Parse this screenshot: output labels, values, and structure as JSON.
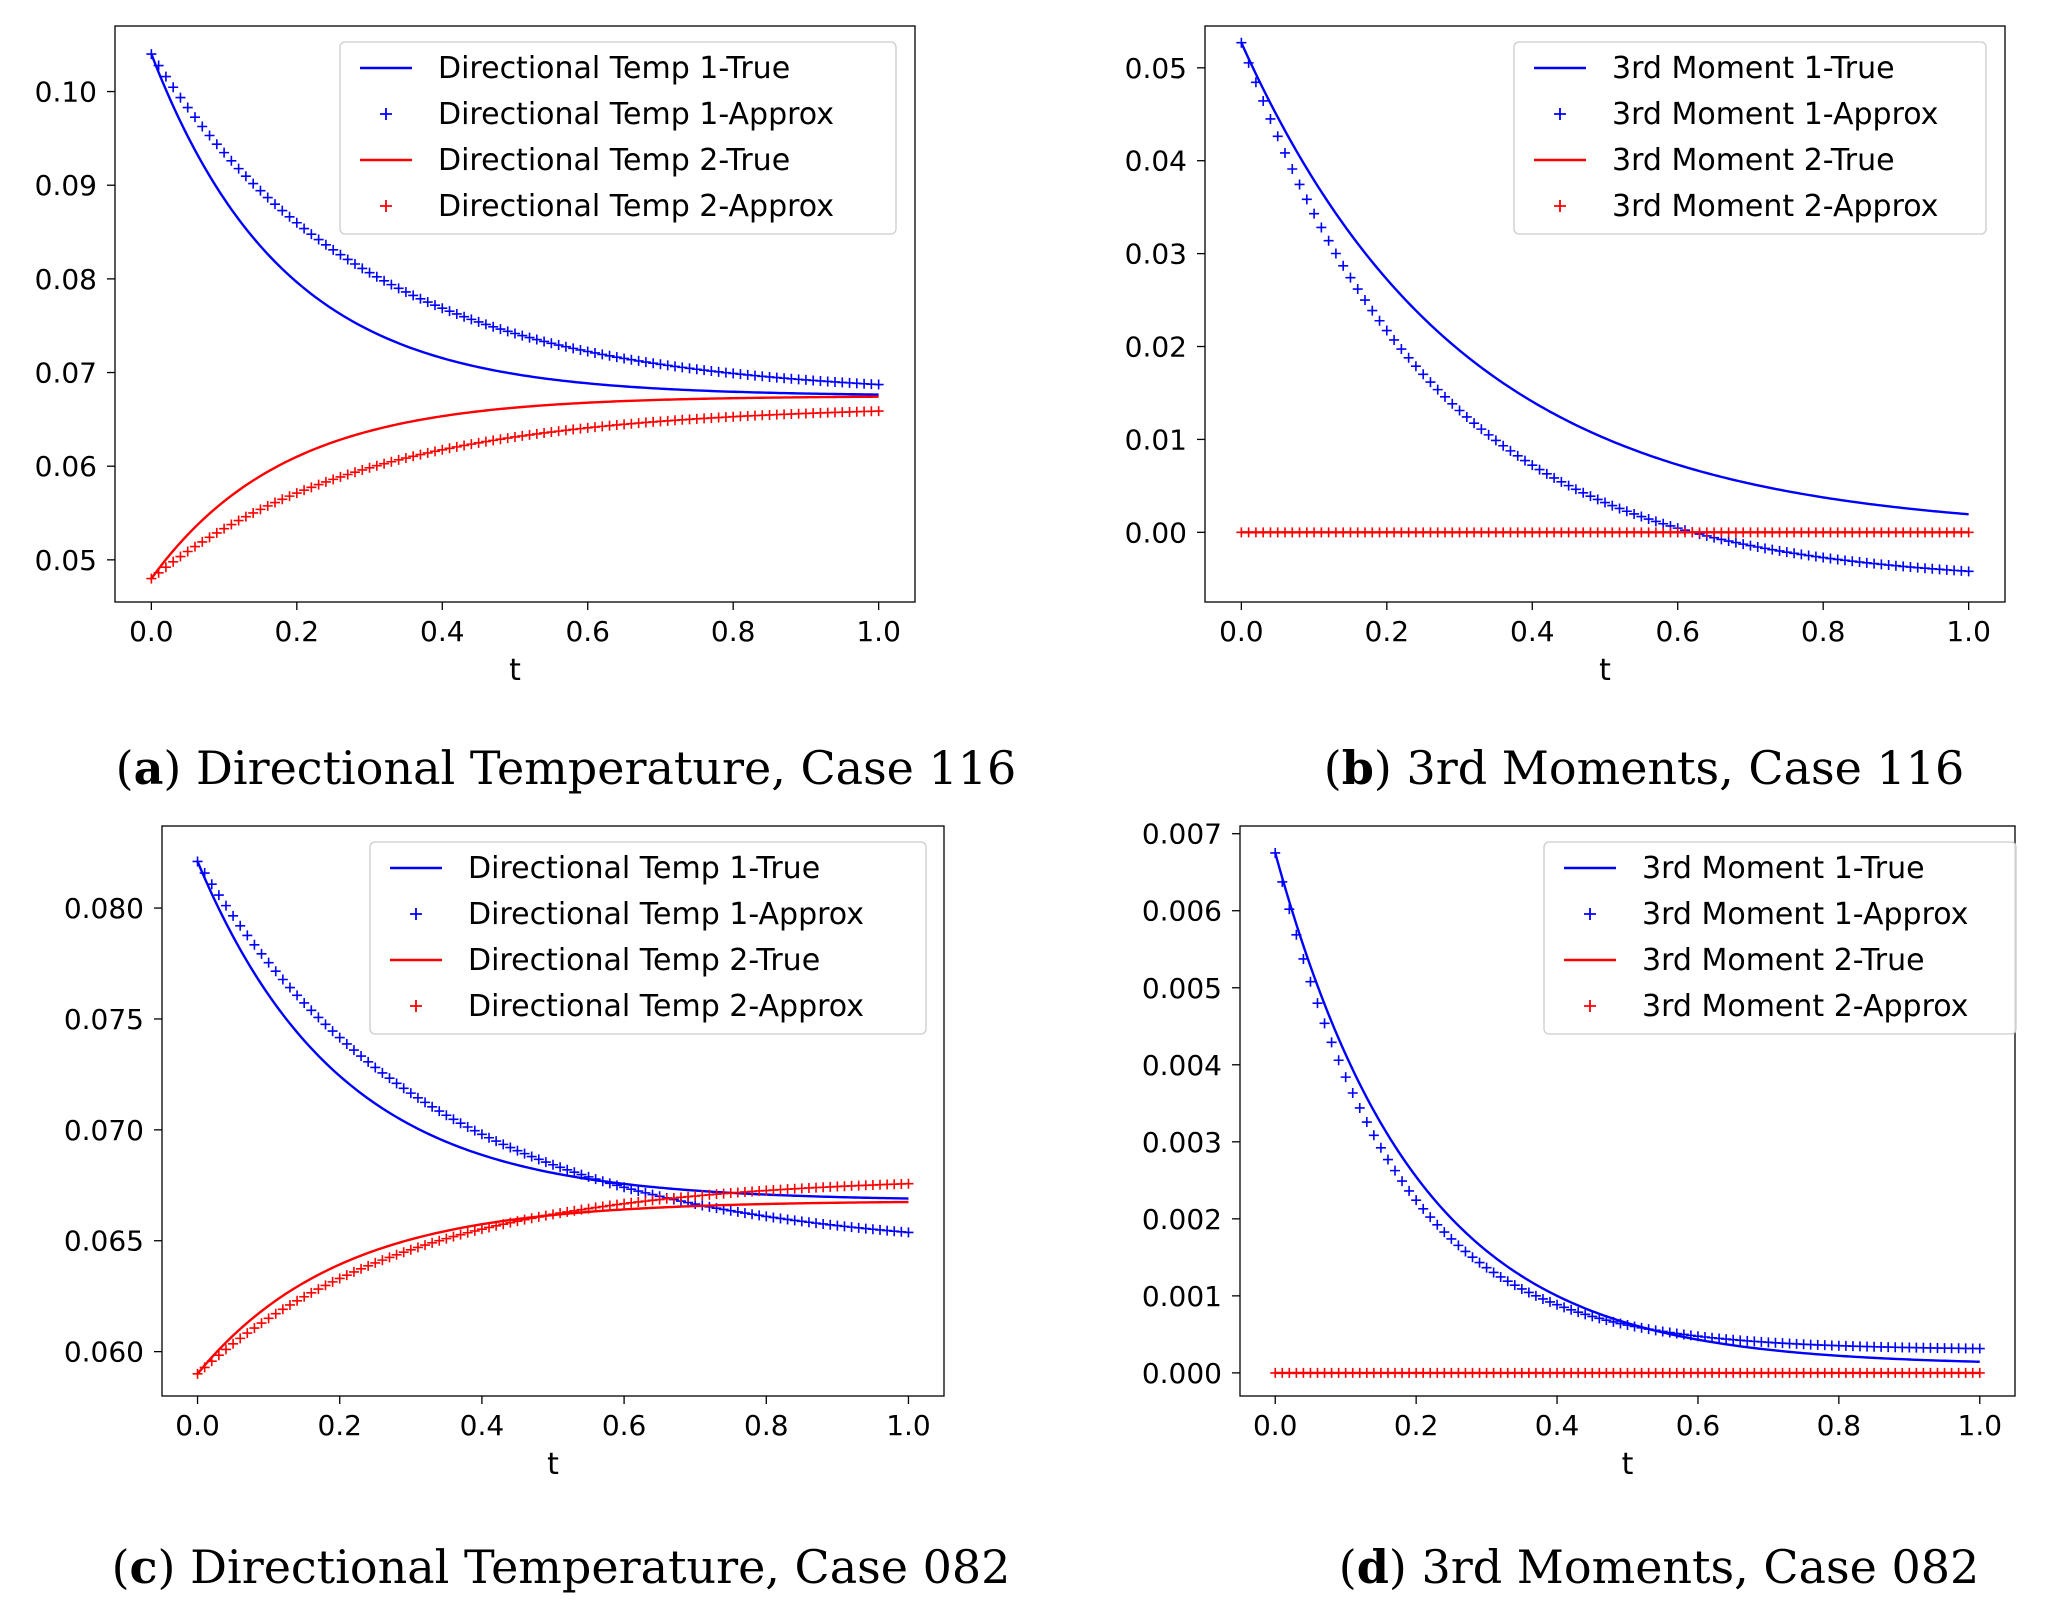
{
  "chart_data": [
    {
      "id": "a",
      "type": "line",
      "caption_letter": "a",
      "caption_text": "Directional Temperature, Case 116",
      "xlabel": "t",
      "ylabel": "",
      "xlim": [
        -0.05,
        1.05
      ],
      "ylim": [
        0.0455,
        0.107
      ],
      "xticks": [
        0.0,
        0.2,
        0.4,
        0.6,
        0.8,
        1.0
      ],
      "xtick_labels": [
        "0.0",
        "0.2",
        "0.4",
        "0.6",
        "0.8",
        "1.0"
      ],
      "yticks": [
        0.05,
        0.06,
        0.07,
        0.08,
        0.09,
        0.1
      ],
      "ytick_labels": [
        "0.05",
        "0.06",
        "0.07",
        "0.08",
        "0.09",
        "0.10"
      ],
      "legend_position": "top-right",
      "series": [
        {
          "name": "Directional Temp 1-True",
          "style": "line",
          "color": "#0000ff",
          "equation": "exp",
          "y0": 0.104,
          "y_inf": 0.0675,
          "rate": 5.5
        },
        {
          "name": "Directional Temp 1-Approx",
          "style": "marker",
          "color": "#0000ff",
          "equation": "exp",
          "y0": 0.104,
          "y_inf": 0.0675,
          "rate": 3.4
        },
        {
          "name": "Directional Temp 2-True",
          "style": "line",
          "color": "#ff0000",
          "equation": "exp",
          "y0": 0.048,
          "y_inf": 0.0675,
          "rate": 5.5
        },
        {
          "name": "Directional Temp 2-Approx",
          "style": "marker",
          "color": "#ff0000",
          "equation": "exp",
          "y0": 0.048,
          "y_inf": 0.0665,
          "rate": 3.4
        }
      ]
    },
    {
      "id": "b",
      "type": "line",
      "caption_letter": "b",
      "caption_text": "3rd Moments, Case 116",
      "xlabel": "t",
      "ylabel": "",
      "xlim": [
        -0.05,
        1.05
      ],
      "ylim": [
        -0.0075,
        0.0545
      ],
      "xticks": [
        0.0,
        0.2,
        0.4,
        0.6,
        0.8,
        1.0
      ],
      "xtick_labels": [
        "0.0",
        "0.2",
        "0.4",
        "0.6",
        "0.8",
        "1.0"
      ],
      "yticks": [
        0.0,
        0.01,
        0.02,
        0.03,
        0.04,
        0.05
      ],
      "ytick_labels": [
        "0.00",
        "0.01",
        "0.02",
        "0.03",
        "0.04",
        "0.05"
      ],
      "legend_position": "top-right",
      "series": [
        {
          "name": "3rd Moment 1-True",
          "style": "line",
          "color": "#0000ff",
          "equation": "exp",
          "y0": 0.0527,
          "y_inf": 0.0,
          "rate": 3.3
        },
        {
          "name": "3rd Moment 1-Approx",
          "style": "marker",
          "color": "#0000ff",
          "equation": "exp",
          "y0": 0.0527,
          "y_inf": -0.0055,
          "rate": 3.8
        },
        {
          "name": "3rd Moment 2-True",
          "style": "line",
          "color": "#ff0000",
          "equation": "exp",
          "y0": 0.0,
          "y_inf": 0.0,
          "rate": 1.0
        },
        {
          "name": "3rd Moment 2-Approx",
          "style": "marker",
          "color": "#ff0000",
          "equation": "exp",
          "y0": 0.0,
          "y_inf": 0.0,
          "rate": 1.0
        }
      ]
    },
    {
      "id": "c",
      "type": "line",
      "caption_letter": "c",
      "caption_text": "Directional Temperature, Case 082",
      "xlabel": "t",
      "ylabel": "",
      "xlim": [
        -0.05,
        1.05
      ],
      "ylim": [
        0.058,
        0.0837
      ],
      "xticks": [
        0.0,
        0.2,
        0.4,
        0.6,
        0.8,
        1.0
      ],
      "xtick_labels": [
        "0.0",
        "0.2",
        "0.4",
        "0.6",
        "0.8",
        "1.0"
      ],
      "yticks": [
        0.06,
        0.065,
        0.07,
        0.075,
        0.08
      ],
      "ytick_labels": [
        "0.060",
        "0.065",
        "0.070",
        "0.075",
        "0.080"
      ],
      "legend_position": "top-right",
      "series": [
        {
          "name": "Directional Temp 1-True",
          "style": "line",
          "color": "#0000ff",
          "equation": "exp",
          "y0": 0.0821,
          "y_inf": 0.0668,
          "rate": 5.0
        },
        {
          "name": "Directional Temp 1-Approx",
          "style": "marker",
          "color": "#0000ff",
          "equation": "exp",
          "y0": 0.0821,
          "y_inf": 0.0645,
          "rate": 3.0
        },
        {
          "name": "Directional Temp 2-True",
          "style": "line",
          "color": "#ff0000",
          "equation": "exp",
          "y0": 0.059,
          "y_inf": 0.0668,
          "rate": 5.0
        },
        {
          "name": "Directional Temp 2-Approx",
          "style": "marker",
          "color": "#ff0000",
          "equation": "exp",
          "y0": 0.059,
          "y_inf": 0.0679,
          "rate": 3.3
        }
      ]
    },
    {
      "id": "d",
      "type": "line",
      "caption_letter": "d",
      "caption_text": "3rd Moments, Case 082",
      "xlabel": "t",
      "ylabel": "",
      "xlim": [
        -0.05,
        1.05
      ],
      "ylim": [
        -0.0003,
        0.0071
      ],
      "xticks": [
        0.0,
        0.2,
        0.4,
        0.6,
        0.8,
        1.0
      ],
      "xtick_labels": [
        "0.0",
        "0.2",
        "0.4",
        "0.6",
        "0.8",
        "1.0"
      ],
      "yticks": [
        0.0,
        0.001,
        0.002,
        0.003,
        0.004,
        0.005,
        0.006,
        0.007
      ],
      "ytick_labels": [
        "0.000",
        "0.001",
        "0.002",
        "0.003",
        "0.004",
        "0.005",
        "0.006",
        "0.007"
      ],
      "legend_position": "top-right",
      "series": [
        {
          "name": "3rd Moment 1-True",
          "style": "line",
          "color": "#0000ff",
          "equation": "exp",
          "y0": 0.00675,
          "y_inf": 0.0001,
          "rate": 5.0
        },
        {
          "name": "3rd Moment 1-Approx",
          "style": "marker",
          "color": "#0000ff",
          "equation": "exp",
          "y0": 0.00675,
          "y_inf": 0.0003,
          "rate": 6.0
        },
        {
          "name": "3rd Moment 2-True",
          "style": "line",
          "color": "#ff0000",
          "equation": "exp",
          "y0": 0.0,
          "y_inf": 0.0,
          "rate": 1.0
        },
        {
          "name": "3rd Moment 2-Approx",
          "style": "marker",
          "color": "#ff0000",
          "equation": "exp",
          "y0": 0.0,
          "y_inf": 0.0,
          "rate": 1.0
        }
      ]
    }
  ]
}
